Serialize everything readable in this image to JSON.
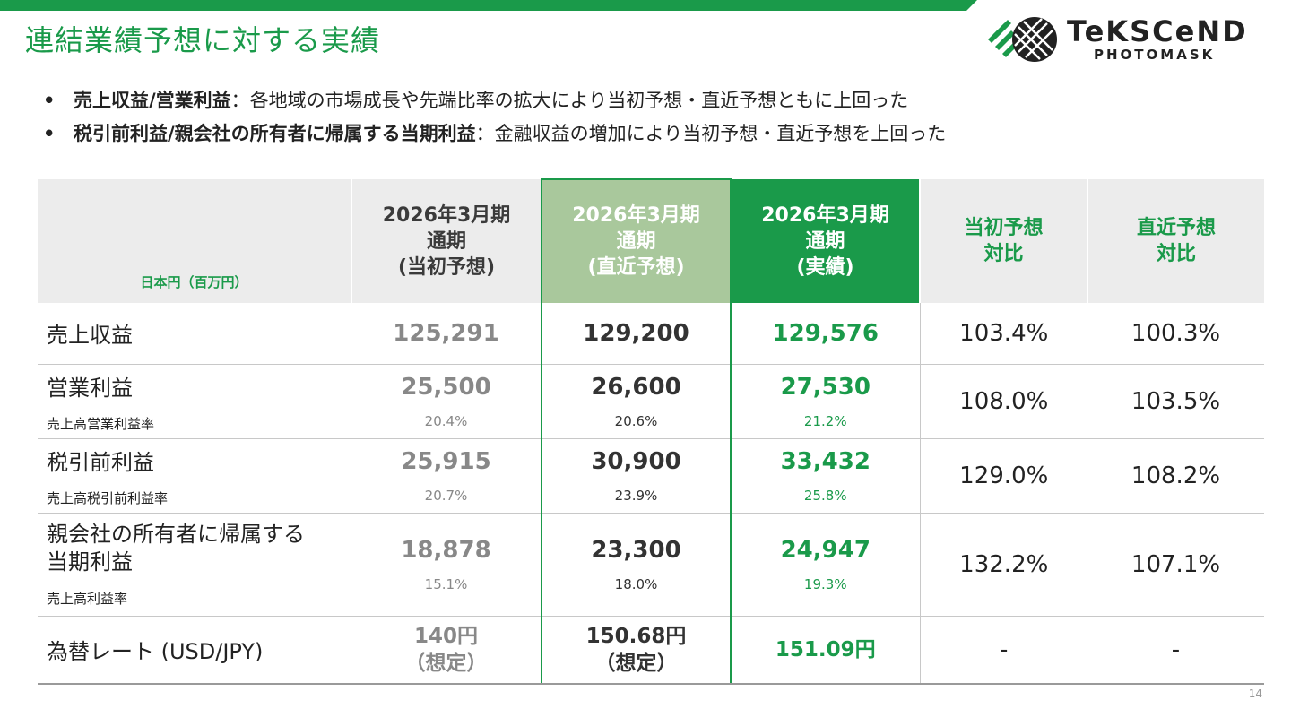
{
  "header": {
    "title": "連結業績予想に対する実績",
    "logo": {
      "word": "TeKSCeND",
      "sub": "PHOTOMASK"
    }
  },
  "bullets": [
    {
      "bullet": "•",
      "strong": "売上収益/営業利益",
      "text": "：各地域の市場成長や先端比率の拡大により当初予想・直近予想ともに上回った"
    },
    {
      "bullet": "•",
      "strong": "税引前利益/親会社の所有者に帰属する当期利益",
      "text": "：金融収益の増加により当初予想・直近予想を上回った"
    }
  ],
  "table": {
    "headers": {
      "unit": "日本円（百万円）",
      "plan": [
        "2026年3月期",
        "通期",
        "(当初予想)"
      ],
      "recent": [
        "2026年3月期",
        "通期",
        "(直近予想)"
      ],
      "actual": [
        "2026年3月期",
        "通期",
        "(実績)"
      ],
      "vs_plan": [
        "当初予想",
        "対比"
      ],
      "vs_recent": [
        "直近予想",
        "対比"
      ]
    },
    "rows": [
      {
        "label": "売上収益",
        "sub_label": "",
        "plan": "125,291",
        "recent": "129,200",
        "actual": "129,576",
        "plan_pct": "",
        "recent_pct": "",
        "actual_pct": "",
        "vs_plan": "103.4%",
        "vs_recent": "100.3%"
      },
      {
        "label": "営業利益",
        "sub_label": "売上高営業利益率",
        "plan": "25,500",
        "recent": "26,600",
        "actual": "27,530",
        "plan_pct": "20.4%",
        "recent_pct": "20.6%",
        "actual_pct": "21.2%",
        "vs_plan": "108.0%",
        "vs_recent": "103.5%"
      },
      {
        "label": "税引前利益",
        "sub_label": "売上高税引前利益率",
        "plan": "25,915",
        "recent": "30,900",
        "actual": "33,432",
        "plan_pct": "20.7%",
        "recent_pct": "23.9%",
        "actual_pct": "25.8%",
        "vs_plan": "129.0%",
        "vs_recent": "108.2%"
      },
      {
        "label": "親会社の所有者に帰属する当期利益",
        "label_line1": "親会社の所有者に帰属する",
        "label_line2": "当期利益",
        "sub_label": "売上高利益率",
        "plan": "18,878",
        "recent": "23,300",
        "actual": "24,947",
        "plan_pct": "15.1%",
        "recent_pct": "18.0%",
        "actual_pct": "19.3%",
        "vs_plan": "132.2%",
        "vs_recent": "107.1%"
      }
    ],
    "fx": {
      "label": "為替レート (USD/JPY)",
      "plan_line1": "140円",
      "plan_line2": "（想定）",
      "recent_line1": "150.68円",
      "recent_line2": "（想定）",
      "actual": "151.09円",
      "vs_plan": "-",
      "vs_recent": "-"
    }
  },
  "footer": {
    "page_number": "14"
  },
  "colors": {
    "accent_green": "#1a9a4a",
    "light_green": "#a9c89c",
    "header_gray": "#ececec"
  }
}
